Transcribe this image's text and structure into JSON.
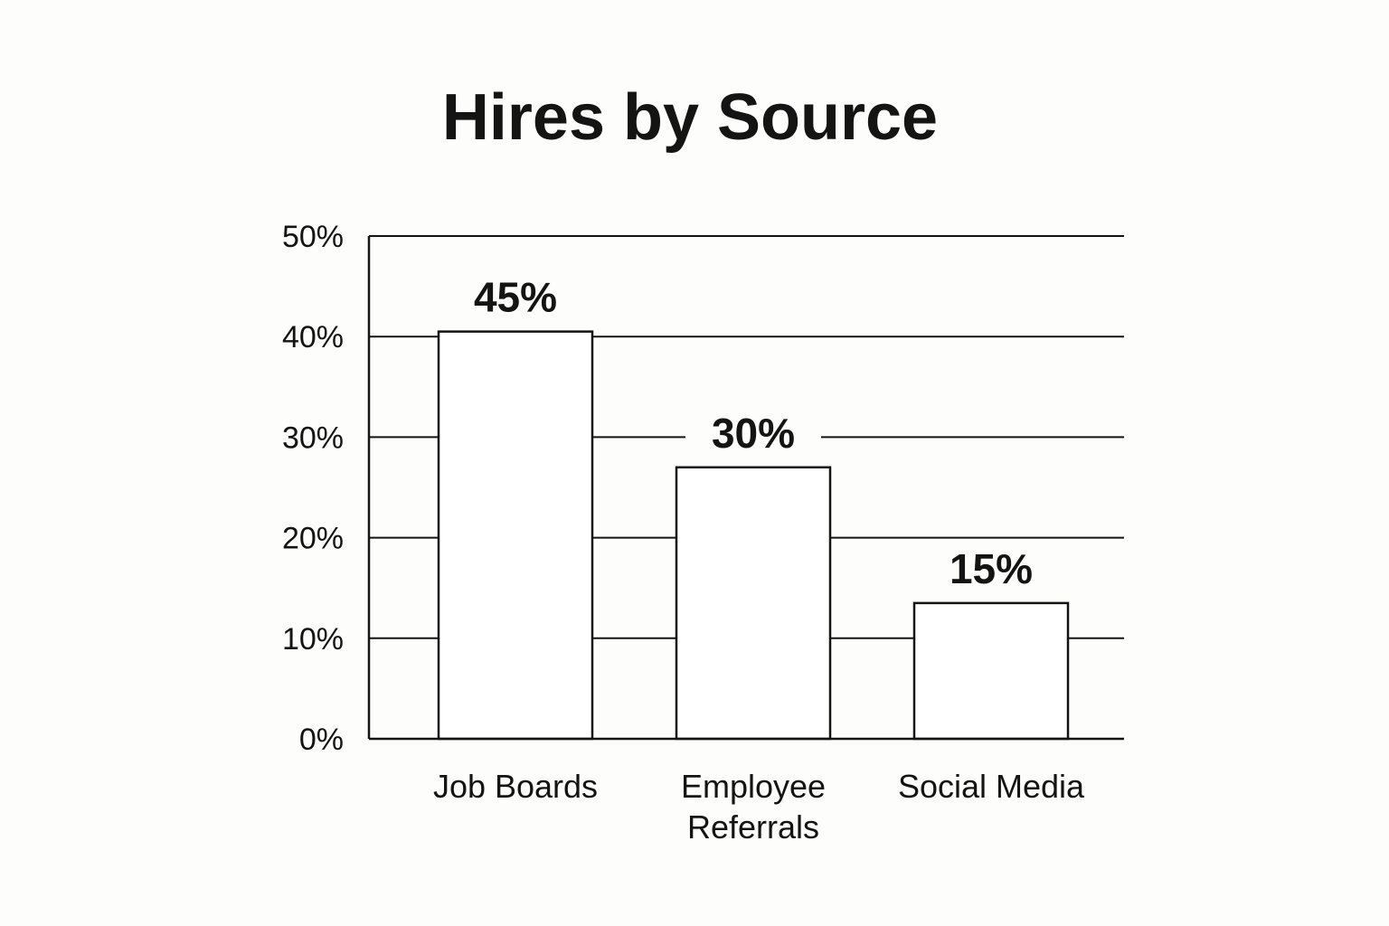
{
  "chart_data": {
    "type": "bar",
    "title": "Hires by Source",
    "categories": [
      [
        "Job Boards"
      ],
      [
        "Employee",
        "Referrals"
      ],
      [
        "Social Media"
      ]
    ],
    "values": [
      45,
      30,
      15
    ],
    "value_labels": [
      "45%",
      "30%",
      "15%"
    ],
    "y_ticks": [
      "0%",
      "10%",
      "20%",
      "30%",
      "40%",
      "50%"
    ],
    "ylim": [
      0,
      50
    ],
    "xlabel": "",
    "ylabel": "",
    "grid": true,
    "legend": "none",
    "colors": {
      "bar_fill": "#ffffff",
      "stroke": "#141414",
      "background": "#fdfdfc"
    }
  }
}
